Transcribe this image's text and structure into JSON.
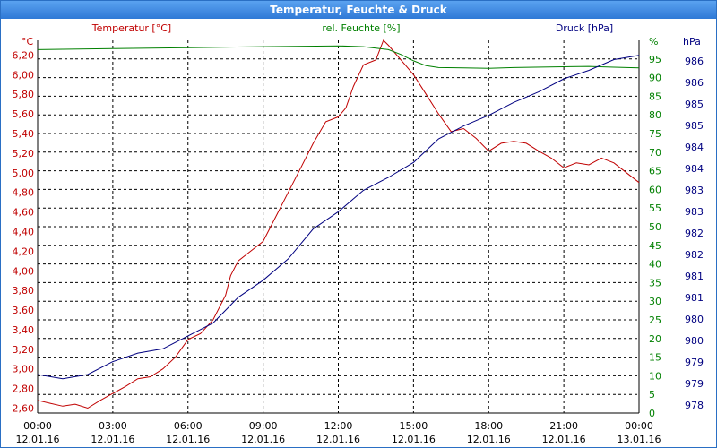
{
  "window": {
    "title": "Temperatur, Feuchte & Druck"
  },
  "chart_data": {
    "type": "line",
    "x_ticks": [
      {
        "time": "00:00",
        "date": "12.01.16"
      },
      {
        "time": "03:00",
        "date": "12.01.16"
      },
      {
        "time": "06:00",
        "date": "12.01.16"
      },
      {
        "time": "09:00",
        "date": "12.01.16"
      },
      {
        "time": "12:00",
        "date": "12.01.16"
      },
      {
        "time": "15:00",
        "date": "12.01.16"
      },
      {
        "time": "18:00",
        "date": "12.01.16"
      },
      {
        "time": "21:00",
        "date": "12.01.16"
      },
      {
        "time": "00:00",
        "date": "13.01.16"
      }
    ],
    "grid": true,
    "axes": {
      "temperature": {
        "label": "Temperatur [°C]",
        "unit": "°C",
        "color": "#c00000",
        "ticks": [
          "2,60",
          "2,80",
          "3,00",
          "3,20",
          "3,40",
          "3,60",
          "3,80",
          "4,00",
          "4,20",
          "4,40",
          "4,60",
          "4,80",
          "5,00",
          "5,20",
          "5,40",
          "5,60",
          "5,80",
          "6,00",
          "6,20"
        ]
      },
      "humidity": {
        "label": "rel. Feuchte [%]",
        "unit": "%",
        "color": "#008000",
        "ticks": [
          "0",
          "5",
          "10",
          "15",
          "20",
          "25",
          "30",
          "35",
          "40",
          "45",
          "50",
          "55",
          "60",
          "65",
          "70",
          "75",
          "80",
          "85",
          "90",
          "95"
        ]
      },
      "pressure": {
        "label": "Druck [hPa]",
        "unit": "hPa",
        "color": "#000080",
        "ticks": [
          "978",
          "979",
          "979",
          "980",
          "980",
          "981",
          "981",
          "982",
          "982",
          "983",
          "983",
          "984",
          "984",
          "985",
          "985",
          "986",
          "986"
        ]
      }
    },
    "series": [
      {
        "name": "Temperatur [°C]",
        "axis": "temperature",
        "color": "#c00000",
        "points": [
          [
            0,
            2.68
          ],
          [
            0.5,
            2.65
          ],
          [
            1,
            2.62
          ],
          [
            1.5,
            2.64
          ],
          [
            2,
            2.6
          ],
          [
            2.5,
            2.68
          ],
          [
            3,
            2.75
          ],
          [
            3.5,
            2.82
          ],
          [
            4,
            2.9
          ],
          [
            4.5,
            2.92
          ],
          [
            5,
            3.0
          ],
          [
            5.5,
            3.12
          ],
          [
            6,
            3.3
          ],
          [
            6.5,
            3.36
          ],
          [
            7,
            3.5
          ],
          [
            7.5,
            3.75
          ],
          [
            7.7,
            3.95
          ],
          [
            8,
            4.1
          ],
          [
            8.5,
            4.2
          ],
          [
            9,
            4.3
          ],
          [
            9.5,
            4.55
          ],
          [
            10,
            4.8
          ],
          [
            10.5,
            5.05
          ],
          [
            11,
            5.3
          ],
          [
            11.5,
            5.52
          ],
          [
            12,
            5.57
          ],
          [
            12.3,
            5.66
          ],
          [
            12.6,
            5.88
          ],
          [
            13,
            6.1
          ],
          [
            13.5,
            6.15
          ],
          [
            13.8,
            6.35
          ],
          [
            14,
            6.3
          ],
          [
            14.5,
            6.15
          ],
          [
            15,
            6.0
          ],
          [
            15.5,
            5.8
          ],
          [
            16,
            5.6
          ],
          [
            16.5,
            5.42
          ],
          [
            17,
            5.45
          ],
          [
            17.5,
            5.35
          ],
          [
            18,
            5.22
          ],
          [
            18.5,
            5.3
          ],
          [
            19,
            5.32
          ],
          [
            19.5,
            5.3
          ],
          [
            20,
            5.22
          ],
          [
            20.5,
            5.15
          ],
          [
            21,
            5.05
          ],
          [
            21.5,
            5.1
          ],
          [
            22,
            5.08
          ],
          [
            22.5,
            5.15
          ],
          [
            23,
            5.1
          ],
          [
            23.5,
            5.0
          ],
          [
            24,
            4.9
          ]
        ]
      },
      {
        "name": "rel. Feuchte [%]",
        "axis": "humidity",
        "color": "#008000",
        "points": [
          [
            0,
            97.5
          ],
          [
            3,
            97.8
          ],
          [
            6,
            98.0
          ],
          [
            9,
            98.3
          ],
          [
            12,
            98.5
          ],
          [
            13,
            98.3
          ],
          [
            14,
            97.5
          ],
          [
            14.5,
            96.2
          ],
          [
            15,
            94.5
          ],
          [
            15.5,
            93.2
          ],
          [
            16,
            92.7
          ],
          [
            17,
            92.6
          ],
          [
            18,
            92.5
          ],
          [
            19,
            92.7
          ],
          [
            21,
            92.9
          ],
          [
            22,
            93.0
          ],
          [
            23,
            92.8
          ],
          [
            24,
            92.6
          ]
        ]
      },
      {
        "name": "Druck [hPa]",
        "axis": "pressure",
        "color": "#000080",
        "points": [
          [
            0,
            978.9
          ],
          [
            1,
            978.8
          ],
          [
            2,
            978.9
          ],
          [
            3,
            979.2
          ],
          [
            4,
            979.4
          ],
          [
            5,
            979.5
          ],
          [
            6,
            979.8
          ],
          [
            7,
            980.1
          ],
          [
            8,
            980.7
          ],
          [
            9,
            981.1
          ],
          [
            10,
            981.6
          ],
          [
            11,
            982.3
          ],
          [
            12,
            982.7
          ],
          [
            13,
            983.2
          ],
          [
            14,
            983.5
          ],
          [
            15,
            983.85
          ],
          [
            16,
            984.4
          ],
          [
            17,
            984.7
          ],
          [
            18,
            984.95
          ],
          [
            19,
            985.25
          ],
          [
            20,
            985.5
          ],
          [
            21,
            985.8
          ],
          [
            22,
            986.0
          ],
          [
            23,
            986.25
          ],
          [
            24,
            986.35
          ]
        ]
      }
    ]
  }
}
